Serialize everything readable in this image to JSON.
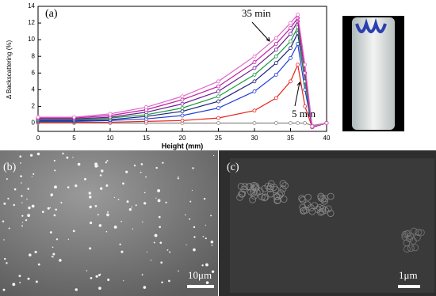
{
  "chart_data": {
    "type": "line",
    "panel_label": "(a)",
    "xlabel": "Height (mm)",
    "ylabel": "Δ Backscattering (%)",
    "x": [
      0,
      5,
      10,
      15,
      20,
      25,
      30,
      33,
      35,
      36,
      37,
      38,
      40
    ],
    "xlim": [
      0,
      40
    ],
    "xticks": [
      0,
      5,
      10,
      15,
      20,
      25,
      30,
      35,
      40
    ],
    "ylim": [
      -1,
      14
    ],
    "yticks": [
      0,
      2,
      4,
      6,
      8,
      10,
      12,
      14
    ],
    "series": [
      {
        "color": "#888888",
        "values": [
          0,
          0,
          0,
          0,
          0,
          0,
          0,
          0,
          0,
          0,
          0,
          -0.3,
          0
        ]
      },
      {
        "color": "#e8231c",
        "values": [
          0.1,
          0.1,
          0.1,
          0.2,
          0.3,
          0.6,
          1.5,
          3,
          5,
          7,
          2,
          -0.5,
          0
        ]
      },
      {
        "color": "#1f3fd8",
        "values": [
          0.2,
          0.2,
          0.3,
          0.5,
          0.9,
          1.8,
          3.8,
          5.8,
          7.8,
          9.5,
          4,
          -0.5,
          0
        ]
      },
      {
        "color": "#1a237e",
        "values": [
          0.3,
          0.3,
          0.4,
          0.8,
          1.4,
          2.6,
          5,
          7.2,
          9,
          10.8,
          5,
          -0.5,
          0
        ]
      },
      {
        "color": "#1b9a3a",
        "values": [
          0.4,
          0.4,
          0.6,
          1.0,
          1.8,
          3.2,
          5.8,
          8,
          9.8,
          11.5,
          5,
          -0.5,
          0
        ]
      },
      {
        "color": "#6a1b9a",
        "values": [
          0.5,
          0.5,
          0.7,
          1.3,
          2.3,
          3.8,
          6.6,
          8.8,
          10.7,
          12.2,
          6,
          -0.5,
          0
        ]
      },
      {
        "color": "#c2189b",
        "values": [
          0.6,
          0.6,
          0.9,
          1.6,
          2.8,
          4.4,
          7.3,
          9.5,
          11.4,
          12.6,
          6,
          -0.5,
          0
        ]
      },
      {
        "color": "#e066c8",
        "values": [
          0.7,
          0.7,
          1.1,
          1.9,
          3.2,
          5,
          8,
          10.2,
          12,
          13,
          7,
          -0.4,
          0
        ]
      }
    ],
    "annotations": [
      "35 min",
      "5 min"
    ]
  },
  "images": [
    {
      "label": "(b)",
      "scale_bar": "10μm"
    },
    {
      "label": "(c)",
      "scale_bar": "1μm"
    }
  ]
}
